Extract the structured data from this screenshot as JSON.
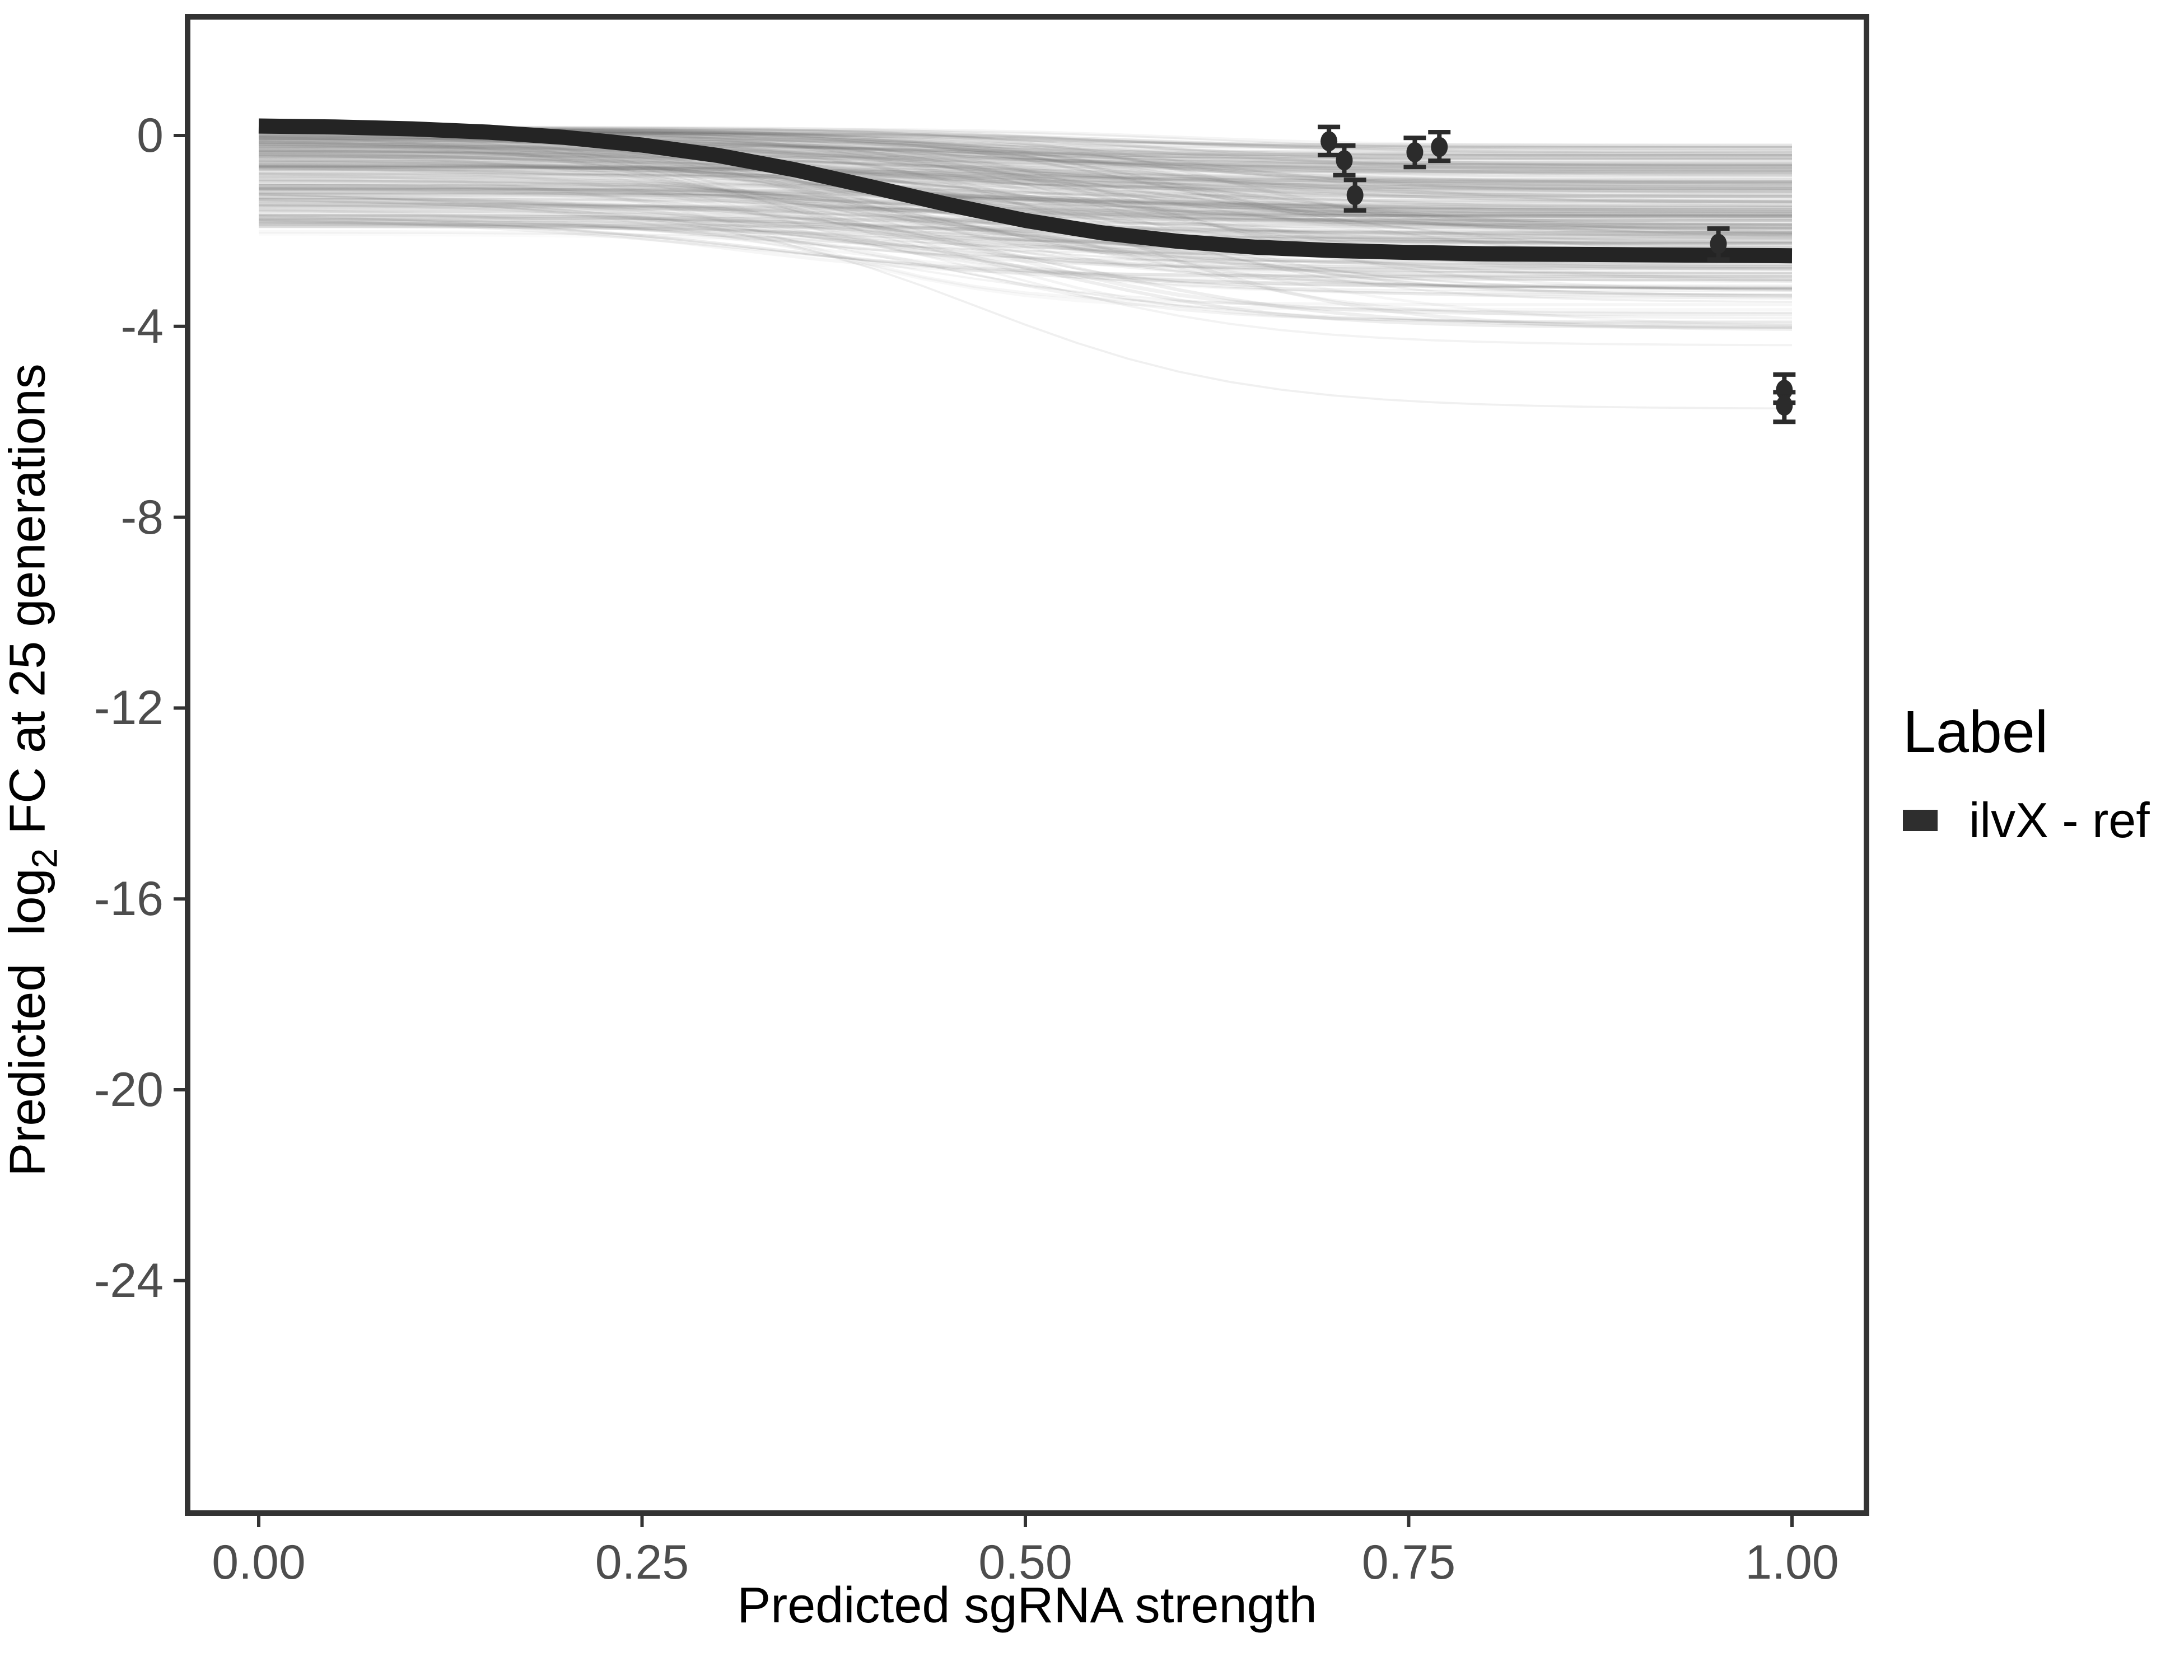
{
  "page": {
    "background": "#ffffff"
  },
  "axes": {
    "x_title": "Predicted sgRNA strength",
    "y_title_pre": "Predicted  log",
    "y_title_sub": "2",
    "y_title_post": " FC at 25 generations"
  },
  "legend": {
    "title": "Label",
    "entries": [
      {
        "label": "ilvX - ref",
        "swatch_color": "#2e2e2e"
      }
    ]
  },
  "style": {
    "panel_border_color": "#333333",
    "panel_border_width": 10,
    "tick_color": "#333333",
    "tick_length": 25,
    "tick_width": 6,
    "tick_label_color": "#4d4d4d",
    "title_color": "#000000",
    "ref_curve_color": "#242424",
    "ref_curve_width": 27,
    "point_color": "#2b2b2b",
    "draw_color": "#6e6e6e"
  },
  "chart_data": {
    "type": "line",
    "title": "",
    "xlabel": "Predicted sgRNA strength",
    "ylabel": "Predicted log2 FC at 25 generations",
    "xlim": [
      -0.046,
      1.048
    ],
    "ylim": [
      -28.9,
      2.5
    ],
    "grid": false,
    "legend_position": "right",
    "x_ticks": {
      "values": [
        0,
        0.25,
        0.5,
        0.75,
        1.0
      ],
      "labels": [
        "0.00",
        "0.25",
        "0.50",
        "0.75",
        "1.00"
      ]
    },
    "y_ticks": {
      "values": [
        0,
        -4,
        -8,
        -12,
        -16,
        -20,
        -24
      ],
      "labels": [
        "0",
        "-4",
        "-8",
        "-12",
        "-16",
        "-20",
        "-24"
      ]
    },
    "series": [
      {
        "name": "ilvX - ref",
        "type": "line",
        "x": [
          0.0,
          0.05,
          0.1,
          0.15,
          0.2,
          0.25,
          0.3,
          0.35,
          0.4,
          0.45,
          0.5,
          0.55,
          0.6,
          0.65,
          0.7,
          0.75,
          0.8,
          0.85,
          0.9,
          0.95,
          1.0
        ],
        "y": [
          0.2,
          0.18,
          0.14,
          0.07,
          -0.04,
          -0.2,
          -0.42,
          -0.72,
          -1.08,
          -1.45,
          -1.78,
          -2.04,
          -2.22,
          -2.34,
          -2.41,
          -2.45,
          -2.48,
          -2.49,
          -2.5,
          -2.51,
          -2.52
        ]
      }
    ],
    "points": [
      {
        "x": 0.698,
        "y": -0.12,
        "ymin": -0.41,
        "ymax": 0.18
      },
      {
        "x": 0.708,
        "y": -0.52,
        "ymin": -0.83,
        "ymax": -0.21
      },
      {
        "x": 0.715,
        "y": -1.25,
        "ymin": -1.57,
        "ymax": -0.93
      },
      {
        "x": 0.754,
        "y": -0.35,
        "ymin": -0.66,
        "ymax": -0.05
      },
      {
        "x": 0.77,
        "y": -0.24,
        "ymin": -0.53,
        "ymax": 0.07
      },
      {
        "x": 0.952,
        "y": -2.27,
        "ymin": -2.6,
        "ymax": -1.95
      },
      {
        "x": 0.995,
        "y": -5.33,
        "ymin": -5.6,
        "ymax": -5.01
      },
      {
        "x": 0.995,
        "y": -5.66,
        "ymin": -6.0,
        "ymax": -5.38
      }
    ],
    "posterior_draws": {
      "description": "translucent gray sigmoid draws forming the band behind the reference curve",
      "count": 300,
      "seed": 11,
      "x_range": [
        0,
        1
      ],
      "start_value_range": [
        0.2,
        -3.9
      ],
      "end_value_range": [
        -0.15,
        -7.1
      ],
      "opacity_range": [
        0.03,
        0.12
      ]
    }
  }
}
